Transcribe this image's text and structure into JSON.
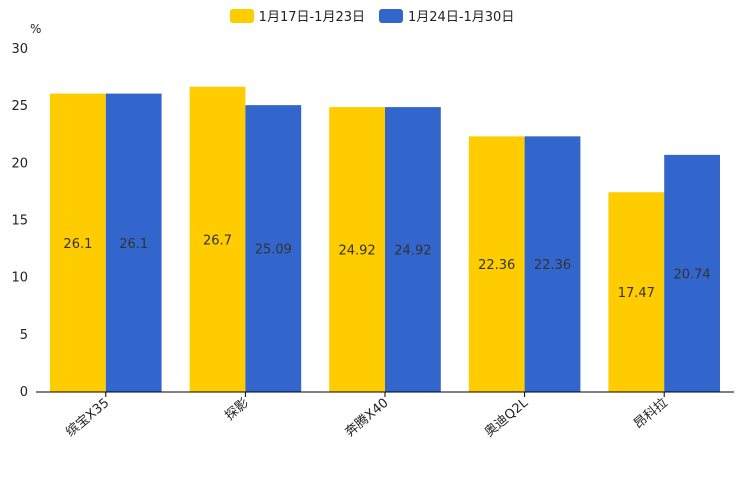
{
  "chart_data": {
    "type": "bar",
    "title": "",
    "unit": "%",
    "xlabel": "",
    "ylabel": "",
    "ylim": [
      0,
      30
    ],
    "yticks": [
      0,
      5,
      10,
      15,
      20,
      25,
      30
    ],
    "grid": false,
    "legend_position": "top-center",
    "categories": [
      "缤宝X35",
      "探影",
      "奔腾X40",
      "奥迪Q2L",
      "昂科拉"
    ],
    "series": [
      {
        "name": "1月17日-1月23日",
        "color": "#FFCC00",
        "values": [
          26.1,
          26.7,
          24.92,
          22.36,
          17.47
        ]
      },
      {
        "name": "1月24日-1月30日",
        "color": "#3366CC",
        "values": [
          26.1,
          25.09,
          24.92,
          22.36,
          20.74
        ]
      }
    ]
  }
}
